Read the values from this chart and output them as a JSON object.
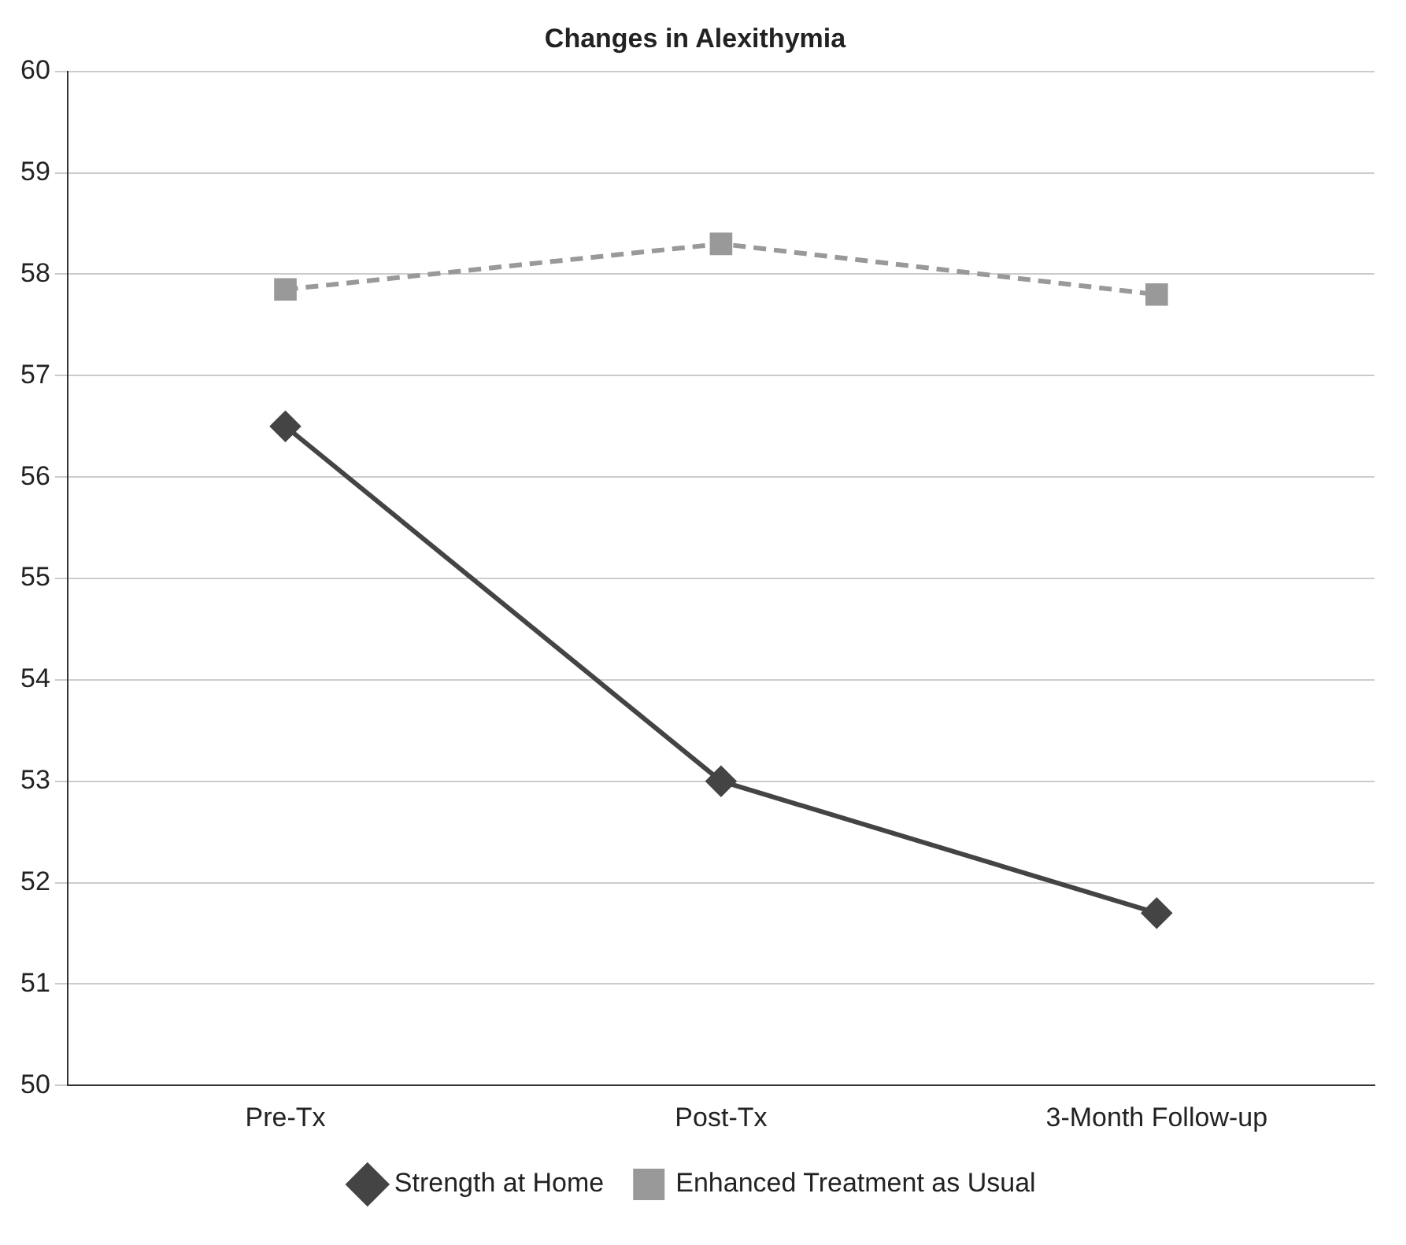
{
  "chart_data": {
    "type": "line",
    "title": "Changes in Alexithymia",
    "categories": [
      "Pre-Tx",
      "Post-Tx",
      "3-Month Follow-up"
    ],
    "series": [
      {
        "name": "Strength at Home",
        "color": "#444444",
        "values": [
          56.5,
          53.0,
          51.7
        ],
        "marker": "diamond",
        "line_style": "solid"
      },
      {
        "name": "Enhanced Treatment as Usual",
        "color": "#999999",
        "values": [
          57.85,
          58.3,
          57.8
        ],
        "marker": "square",
        "line_style": "dashed"
      }
    ],
    "ylim": [
      50,
      60
    ],
    "yticks": [
      50,
      51,
      52,
      53,
      54,
      55,
      56,
      57,
      58,
      59,
      60
    ],
    "grid": "y",
    "legend": "bottom"
  }
}
